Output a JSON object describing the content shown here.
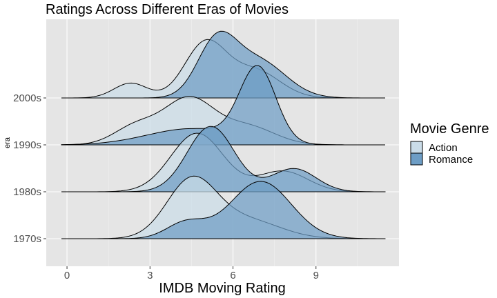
{
  "chart_data": {
    "type": "area",
    "subtype": "ridgeline-density",
    "title": "Ratings Across Different Eras of Movies",
    "xlabel": "IMDB Moving Rating",
    "ylabel": "era",
    "x_ticks": [
      0,
      3,
      6,
      9
    ],
    "xlim": [
      -0.75,
      12
    ],
    "categories": [
      "1970s",
      "1980s",
      "1990s",
      "2000s"
    ],
    "grid": true,
    "legend": {
      "title": "Movie Genre",
      "placement": "right",
      "entries": [
        "Action",
        "Romance"
      ]
    },
    "colors": {
      "Action": "#cadce8",
      "Romance": "#6d9dc5"
    },
    "series": [
      {
        "name": "Action",
        "ridges": [
          {
            "era": "1970s",
            "components": [
              {
                "w": 0.7,
                "mu": 4.5,
                "sd": 0.9
              },
              {
                "w": 0.3,
                "mu": 6.5,
                "sd": 1.2
              }
            ]
          },
          {
            "era": "1980s",
            "components": [
              {
                "w": 0.75,
                "mu": 4.7,
                "sd": 0.95
              },
              {
                "w": 0.25,
                "mu": 7.8,
                "sd": 0.9
              }
            ]
          },
          {
            "era": "1990s",
            "components": [
              {
                "w": 0.2,
                "mu": 2.5,
                "sd": 0.8
              },
              {
                "w": 0.55,
                "mu": 4.4,
                "sd": 0.9
              },
              {
                "w": 0.25,
                "mu": 6.5,
                "sd": 1.0
              }
            ]
          },
          {
            "era": "2000s",
            "components": [
              {
                "w": 0.12,
                "mu": 2.3,
                "sd": 0.6
              },
              {
                "w": 0.55,
                "mu": 5.0,
                "sd": 0.75
              },
              {
                "w": 0.33,
                "mu": 6.8,
                "sd": 0.9
              }
            ]
          }
        ]
      },
      {
        "name": "Romance",
        "ridges": [
          {
            "era": "1970s",
            "components": [
              {
                "w": 0.15,
                "mu": 4.3,
                "sd": 0.7
              },
              {
                "w": 0.85,
                "mu": 7.0,
                "sd": 1.1
              }
            ]
          },
          {
            "era": "1980s",
            "components": [
              {
                "w": 0.75,
                "mu": 5.2,
                "sd": 0.85
              },
              {
                "w": 0.25,
                "mu": 8.2,
                "sd": 0.8
              }
            ]
          },
          {
            "era": "1990s",
            "components": [
              {
                "w": 0.35,
                "mu": 4.5,
                "sd": 1.6
              },
              {
                "w": 0.65,
                "mu": 6.9,
                "sd": 0.65
              }
            ]
          },
          {
            "era": "2000s",
            "components": [
              {
                "w": 0.5,
                "mu": 5.4,
                "sd": 0.7
              },
              {
                "w": 0.5,
                "mu": 6.9,
                "sd": 1.0
              }
            ]
          }
        ]
      }
    ]
  }
}
